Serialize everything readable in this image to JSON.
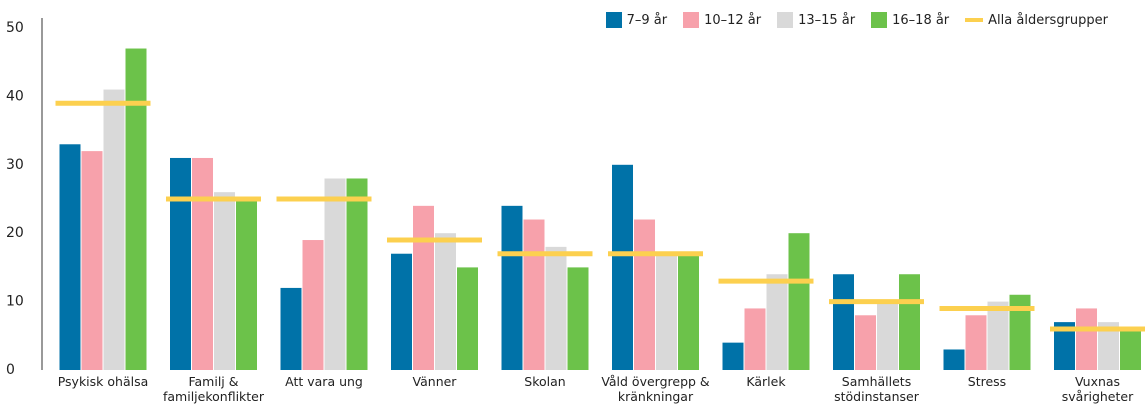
{
  "chart_data": {
    "type": "bar",
    "categories": [
      "Psykisk ohälsa",
      "Familj & familjekonflikter",
      "Att vara ung",
      "Vänner",
      "Skolan",
      "Våld övergrepp & kränkningar",
      "Kärlek",
      "Samhällets stödinstanser",
      "Stress",
      "Vuxnas svårigheter"
    ],
    "series": [
      {
        "name": "7–9 år",
        "color": "#0072a8",
        "values": [
          33,
          31,
          12,
          17,
          24,
          30,
          4,
          14,
          3,
          7
        ]
      },
      {
        "name": "10–12 år",
        "color": "#f7a1ab",
        "values": [
          32,
          31,
          19,
          24,
          22,
          22,
          9,
          8,
          8,
          9
        ]
      },
      {
        "name": "13–15 år",
        "color": "#d9d9d9",
        "values": [
          41,
          26,
          28,
          20,
          18,
          17,
          14,
          10,
          10,
          7
        ]
      },
      {
        "name": "16–18 år",
        "color": "#6cc24a",
        "values": [
          47,
          25,
          28,
          15,
          15,
          17,
          20,
          14,
          11,
          6
        ]
      },
      {
        "name": "Alla åldersgrupper",
        "color": "#fcd04f",
        "type": "line-marker",
        "values": [
          39,
          25,
          25,
          19,
          17,
          17,
          13,
          10,
          9,
          6
        ]
      }
    ],
    "ylim": [
      0,
      50
    ],
    "yticks": [
      0,
      10,
      20,
      30,
      40,
      50
    ],
    "grid": false,
    "legend": "top-right"
  }
}
